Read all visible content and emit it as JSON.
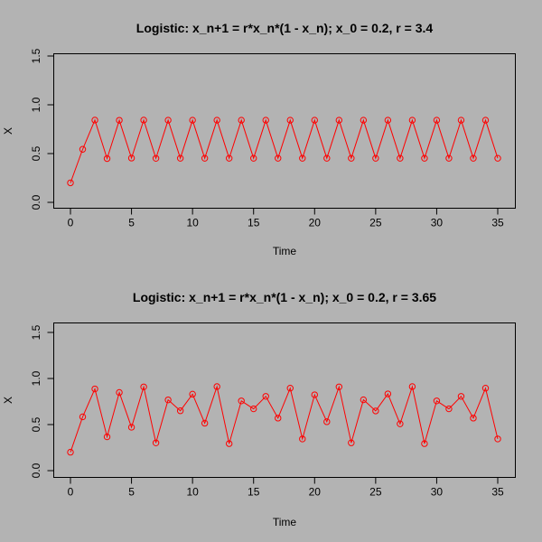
{
  "chart_data": [
    {
      "type": "line",
      "title": "Logistic: x_n+1 = r*x_n*(1 - x_n); x_0 = 0.2, r = 3.4",
      "xlabel": "Time",
      "ylabel": "X",
      "xlim": [
        0,
        35
      ],
      "ylim": [
        0,
        1.5
      ],
      "xticks": [
        "0",
        "5",
        "10",
        "15",
        "20",
        "25",
        "30",
        "35"
      ],
      "yticks": [
        "0.0",
        "0.5",
        "1.0",
        "1.5"
      ],
      "series_color": "#ff0000",
      "x": [
        0,
        1,
        2,
        3,
        4,
        5,
        6,
        7,
        8,
        9,
        10,
        11,
        12,
        13,
        14,
        15,
        16,
        17,
        18,
        19,
        20,
        21,
        22,
        23,
        24,
        25,
        26,
        27,
        28,
        29,
        30,
        31,
        32,
        33,
        34,
        35
      ],
      "values": [
        0.2,
        0.544,
        0.843,
        0.449,
        0.841,
        0.454,
        0.843,
        0.451,
        0.842,
        0.452,
        0.842,
        0.452,
        0.842,
        0.452,
        0.842,
        0.452,
        0.842,
        0.452,
        0.842,
        0.452,
        0.842,
        0.452,
        0.842,
        0.452,
        0.842,
        0.452,
        0.842,
        0.452,
        0.842,
        0.452,
        0.842,
        0.452,
        0.842,
        0.452,
        0.842,
        0.452
      ]
    },
    {
      "type": "line",
      "title": "Logistic: x_n+1 = r*x_n*(1 - x_n); x_0 = 0.2, r = 3.65",
      "xlabel": "Time",
      "ylabel": "X",
      "xlim": [
        0,
        35
      ],
      "ylim": [
        0,
        1.5
      ],
      "xticks": [
        "0",
        "5",
        "10",
        "15",
        "20",
        "25",
        "30",
        "35"
      ],
      "yticks": [
        "0.0",
        "0.5",
        "1.0",
        "1.5"
      ],
      "series_color": "#ff0000",
      "x": [
        0,
        1,
        2,
        3,
        4,
        5,
        6,
        7,
        8,
        9,
        10,
        11,
        12,
        13,
        14,
        15,
        16,
        17,
        18,
        19,
        20,
        21,
        22,
        23,
        24,
        25,
        26,
        27,
        28,
        29,
        30,
        31,
        32,
        33,
        34,
        35
      ],
      "values": [
        0.2,
        0.584,
        0.887,
        0.367,
        0.848,
        0.471,
        0.909,
        0.301,
        0.768,
        0.65,
        0.83,
        0.515,
        0.912,
        0.293,
        0.757,
        0.671,
        0.806,
        0.57,
        0.895,
        0.344,
        0.823,
        0.531,
        0.909,
        0.302,
        0.769,
        0.648,
        0.833,
        0.508,
        0.912,
        0.293,
        0.757,
        0.671,
        0.806,
        0.57,
        0.895,
        0.344
      ]
    }
  ]
}
